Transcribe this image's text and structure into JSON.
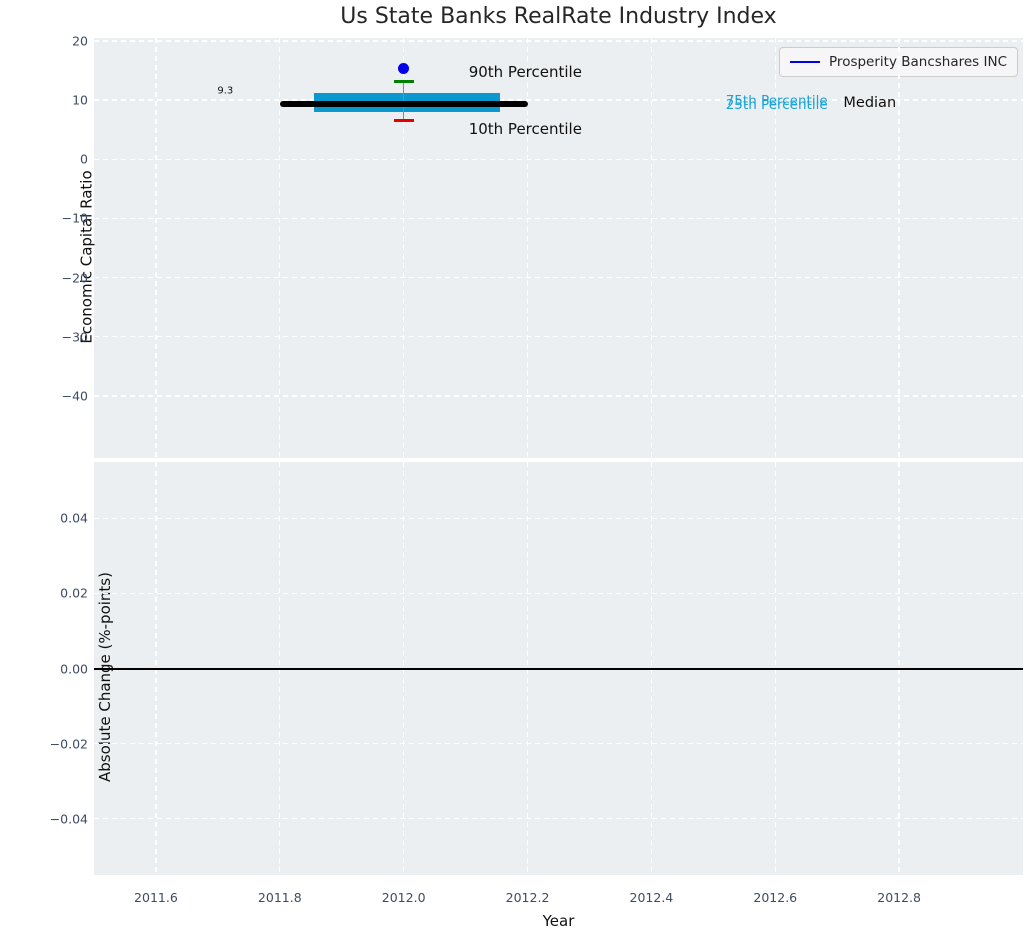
{
  "title": "Us State Banks RealRate Industry Index",
  "legend": {
    "label": "Prosperity Bancshares INC",
    "line_color": "#0000e6"
  },
  "colors": {
    "figure_bg": "#ffffff",
    "plot_bg": "#eceff1",
    "grid": "#ffffff",
    "tick_label": "#3d4c63",
    "box_fill": "#0999cf",
    "median_line": "#000000",
    "whisker": "#888888",
    "p90_cap": "#008000",
    "p10_cap": "#e60000",
    "company_dot": "#0000e6",
    "zero_line": "#000000",
    "percentile_text": "#1ba3d6",
    "annotation_text": "#111111"
  },
  "chart_data": [
    {
      "type": "box",
      "title": "Us State Banks RealRate Industry Index",
      "ylabel": "Economic Capital Ratio",
      "xlim": [
        2011.5,
        2013.0
      ],
      "ylim": [
        -50.5,
        20.5
      ],
      "grid": true,
      "legend_position": "upper right",
      "yticks": [
        {
          "v": 20,
          "label": "20"
        },
        {
          "v": 10,
          "label": "10"
        },
        {
          "v": 0,
          "label": "0"
        },
        {
          "v": -10,
          "label": "−10"
        },
        {
          "v": -20,
          "label": "−20"
        },
        {
          "v": -30,
          "label": "−30"
        },
        {
          "v": -40,
          "label": "−40"
        }
      ],
      "xticks": [
        {
          "v": 2011.6,
          "label": "2011.6"
        },
        {
          "v": 2011.8,
          "label": "2011.8"
        },
        {
          "v": 2012.0,
          "label": "2012.0"
        },
        {
          "v": 2012.2,
          "label": "2012.2"
        },
        {
          "v": 2012.4,
          "label": "2012.4"
        },
        {
          "v": 2012.6,
          "label": "2012.6"
        },
        {
          "v": 2012.8,
          "label": "2012.8"
        }
      ],
      "x_tick_labels_visible": false,
      "box": {
        "year": 2012.0,
        "median": 9.3,
        "q1": 8.0,
        "q3": 11.2,
        "p10": 6.6,
        "p90": 13.2,
        "median_line_span": [
          2011.8,
          2012.2
        ],
        "box_span": [
          2011.855,
          2012.155
        ],
        "cap_half_width": 0.016
      },
      "company_point": {
        "name": "Prosperity Bancshares INC",
        "year": 2012.0,
        "value": 15.3
      },
      "annotations": [
        {
          "text": "9.3",
          "x": 2011.712,
          "y": 11.5,
          "anchor": "center",
          "color_key": "annotation_text",
          "size": 10,
          "name": "median-value-annotation"
        },
        {
          "text": "90th Percentile",
          "x": 2012.105,
          "y": 14.8,
          "anchor": "left",
          "color_key": "annotation_text",
          "size": 15,
          "name": "p90-label"
        },
        {
          "text": "10th Percentile",
          "x": 2012.105,
          "y": 5.2,
          "anchor": "left",
          "color_key": "annotation_text",
          "size": 15,
          "name": "p10-label"
        },
        {
          "text": "75th Percentile",
          "x": 2012.52,
          "y": 9.9,
          "anchor": "left",
          "color_key": "percentile_text",
          "size": 13.5,
          "name": "p75-label"
        },
        {
          "text": "25th Percentile",
          "x": 2012.52,
          "y": 9.25,
          "anchor": "left",
          "color_key": "percentile_text",
          "size": 13.5,
          "name": "p25-label"
        },
        {
          "text": "Median",
          "x": 2012.71,
          "y": 9.55,
          "anchor": "left",
          "color_key": "annotation_text",
          "size": 14.5,
          "name": "median-label"
        }
      ]
    },
    {
      "type": "line",
      "ylabel": "Absolute Change (%-points)",
      "xlabel": "Year",
      "xlim": [
        2011.5,
        2013.0
      ],
      "ylim": [
        -0.055,
        0.055
      ],
      "grid": true,
      "yticks": [
        {
          "v": 0.04,
          "label": "0.04"
        },
        {
          "v": 0.02,
          "label": "0.02"
        },
        {
          "v": 0.0,
          "label": "0.00"
        },
        {
          "v": -0.02,
          "label": "−0.02"
        },
        {
          "v": -0.04,
          "label": "−0.04"
        }
      ],
      "xticks": [
        {
          "v": 2011.6,
          "label": "2011.6"
        },
        {
          "v": 2011.8,
          "label": "2011.8"
        },
        {
          "v": 2012.0,
          "label": "2012.0"
        },
        {
          "v": 2012.2,
          "label": "2012.2"
        },
        {
          "v": 2012.4,
          "label": "2012.4"
        },
        {
          "v": 2012.6,
          "label": "2012.6"
        },
        {
          "v": 2012.8,
          "label": "2012.8"
        }
      ],
      "x_tick_labels_visible": true,
      "zero_line": 0.0,
      "series": []
    }
  ]
}
